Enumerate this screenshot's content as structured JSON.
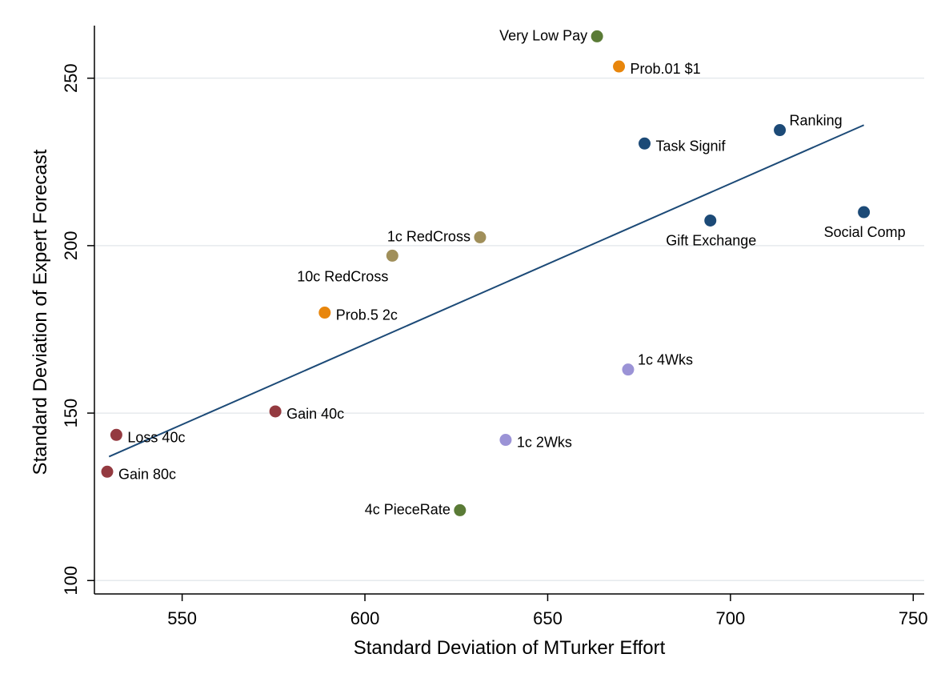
{
  "chart_data": {
    "type": "scatter",
    "title": "",
    "xlabel": "Standard Deviation of MTurker Effort",
    "ylabel": "Standard Deviation of Expert Forecast",
    "xlim": [
      526,
      753
    ],
    "ylim": [
      96,
      265.7
    ],
    "xticks": [
      550,
      600,
      650,
      700,
      750
    ],
    "yticks": [
      100,
      150,
      200,
      250
    ],
    "grid": "horizontal",
    "legend": "none",
    "points": [
      {
        "label": "Very Low Pay",
        "x": 663.5,
        "y": 262.5,
        "color": "#5a7b36",
        "label_pos": "left"
      },
      {
        "label": "Prob.01 $1",
        "x": 669.5,
        "y": 253.5,
        "color": "#e8860c",
        "label_pos": "right"
      },
      {
        "label": "Ranking",
        "x": 713.5,
        "y": 234.5,
        "color": "#1c4a77",
        "label_pos": "above-right"
      },
      {
        "label": "Task Signif",
        "x": 676.5,
        "y": 230.5,
        "color": "#1c4a77",
        "label_pos": "right"
      },
      {
        "label": "Gift Exchange",
        "x": 694.5,
        "y": 207.5,
        "color": "#1c4a77",
        "label_pos": "below"
      },
      {
        "label": "Social Comp",
        "x": 736.5,
        "y": 210,
        "color": "#1c4a77",
        "label_pos": "below"
      },
      {
        "label": "1c RedCross",
        "x": 631.5,
        "y": 202.5,
        "color": "#a08f5a",
        "label_pos": "left"
      },
      {
        "label": "10c RedCross",
        "x": 607.5,
        "y": 197,
        "color": "#a08f5a",
        "label_pos": "below-left"
      },
      {
        "label": "Prob.5 2c",
        "x": 589,
        "y": 180,
        "color": "#e8860c",
        "label_pos": "right"
      },
      {
        "label": "1c 4Wks",
        "x": 672,
        "y": 163,
        "color": "#9b93d6",
        "label_pos": "above-right"
      },
      {
        "label": "Gain 40c",
        "x": 575.5,
        "y": 150.5,
        "color": "#943a40",
        "label_pos": "right"
      },
      {
        "label": "Loss 40c",
        "x": 532,
        "y": 143.5,
        "color": "#943a40",
        "label_pos": "right"
      },
      {
        "label": "1c 2Wks",
        "x": 638.5,
        "y": 142,
        "color": "#9b93d6",
        "label_pos": "right"
      },
      {
        "label": "Gain 80c",
        "x": 529.5,
        "y": 132.5,
        "color": "#943a40",
        "label_pos": "right"
      },
      {
        "label": "4c PieceRate",
        "x": 626,
        "y": 121,
        "color": "#5a7b36",
        "label_pos": "left"
      }
    ],
    "fit_line": {
      "x": [
        530,
        736.5
      ],
      "y": [
        137,
        236
      ],
      "color": "#1c4a77"
    }
  }
}
